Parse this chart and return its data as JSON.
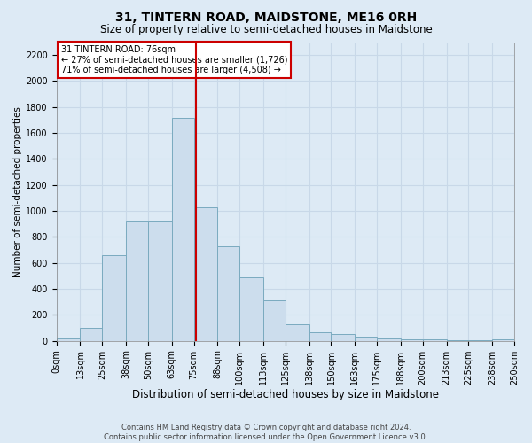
{
  "title": "31, TINTERN ROAD, MAIDSTONE, ME16 0RH",
  "subtitle": "Size of property relative to semi-detached houses in Maidstone",
  "xlabel": "Distribution of semi-detached houses by size in Maidstone",
  "ylabel": "Number of semi-detached properties",
  "footer_line1": "Contains HM Land Registry data © Crown copyright and database right 2024.",
  "footer_line2": "Contains public sector information licensed under the Open Government Licence v3.0.",
  "annotation_line1": "31 TINTERN ROAD: 76sqm",
  "annotation_line2": "← 27% of semi-detached houses are smaller (1,726)",
  "annotation_line3": "71% of semi-detached houses are larger (4,508) →",
  "property_size": 76,
  "bins": [
    0,
    13,
    25,
    38,
    50,
    63,
    75,
    88,
    100,
    113,
    125,
    138,
    150,
    163,
    175,
    188,
    200,
    213,
    225,
    238,
    250
  ],
  "bin_labels": [
    "0sqm",
    "13sqm",
    "25sqm",
    "38sqm",
    "50sqm",
    "63sqm",
    "75sqm",
    "88sqm",
    "100sqm",
    "113sqm",
    "125sqm",
    "138sqm",
    "150sqm",
    "163sqm",
    "175sqm",
    "188sqm",
    "200sqm",
    "213sqm",
    "225sqm",
    "238sqm",
    "250sqm"
  ],
  "counts": [
    20,
    100,
    660,
    920,
    920,
    1720,
    1030,
    730,
    490,
    310,
    130,
    65,
    55,
    35,
    20,
    10,
    10,
    5,
    2,
    15
  ],
  "bar_color": "#ccdded",
  "bar_edge_color": "#7aaabf",
  "vline_color": "#cc0000",
  "vline_x": 76,
  "annotation_box_color": "#ffffff",
  "annotation_box_edge": "#cc0000",
  "grid_color": "#c8d8e8",
  "background_color": "#ddeaf5",
  "ylim": [
    0,
    2300
  ],
  "yticks": [
    0,
    200,
    400,
    600,
    800,
    1000,
    1200,
    1400,
    1600,
    1800,
    2000,
    2200
  ],
  "title_fontsize": 10,
  "subtitle_fontsize": 8.5,
  "xlabel_fontsize": 8.5,
  "ylabel_fontsize": 7.5,
  "tick_fontsize": 7,
  "footer_fontsize": 6
}
